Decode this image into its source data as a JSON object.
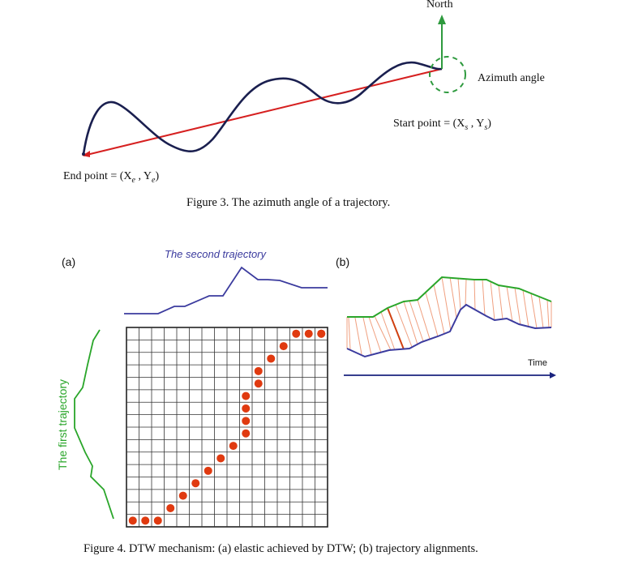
{
  "figure3": {
    "north_label": "North",
    "azimuth_label": "Azimuth angle",
    "start_point_label": "Start point = (X",
    "start_point_sub1": "s",
    "start_point_mid": " , Y",
    "start_point_sub2": "s",
    "start_point_end": ")",
    "end_point_label": "End point = (X",
    "end_point_sub1": "e",
    "end_point_mid": " , Y",
    "end_point_sub2": "e",
    "end_point_end": ")",
    "caption": "Figure 3.   The azimuth angle of a trajectory.",
    "colors": {
      "trajectory": "#1a1f4f",
      "chord": "#d62020",
      "north": "#2e9a3e",
      "azimuth": "#2e9a3e"
    }
  },
  "figure4": {
    "panel_a_label": "(a)",
    "panel_b_label": "(b)",
    "second_trajectory_label": "The second trajectory",
    "first_trajectory_label": "The first trajectory",
    "time_label": "Time",
    "caption": "Figure 4.   DTW mechanism: (a) elastic achieved by DTW; (b) trajectory alignments.",
    "grid_size": 16,
    "warping_path_cells": [
      [
        0,
        0
      ],
      [
        1,
        0
      ],
      [
        2,
        0
      ],
      [
        3,
        1
      ],
      [
        4,
        2
      ],
      [
        5,
        3
      ],
      [
        6,
        4
      ],
      [
        7,
        5
      ],
      [
        8,
        6
      ],
      [
        9,
        7
      ],
      [
        9,
        8
      ],
      [
        9,
        9
      ],
      [
        9,
        10
      ],
      [
        10,
        11
      ],
      [
        10,
        12
      ],
      [
        11,
        13
      ],
      [
        12,
        14
      ],
      [
        13,
        15
      ],
      [
        14,
        16
      ],
      [
        15,
        16
      ],
      [
        16,
        16
      ]
    ],
    "colors": {
      "first": "#2aa62a",
      "second": "#3b3b9e",
      "dots": "#e03a10",
      "alignment": "#f0a080",
      "highlight": "#d04010",
      "time_axis": "#1a237e"
    }
  }
}
